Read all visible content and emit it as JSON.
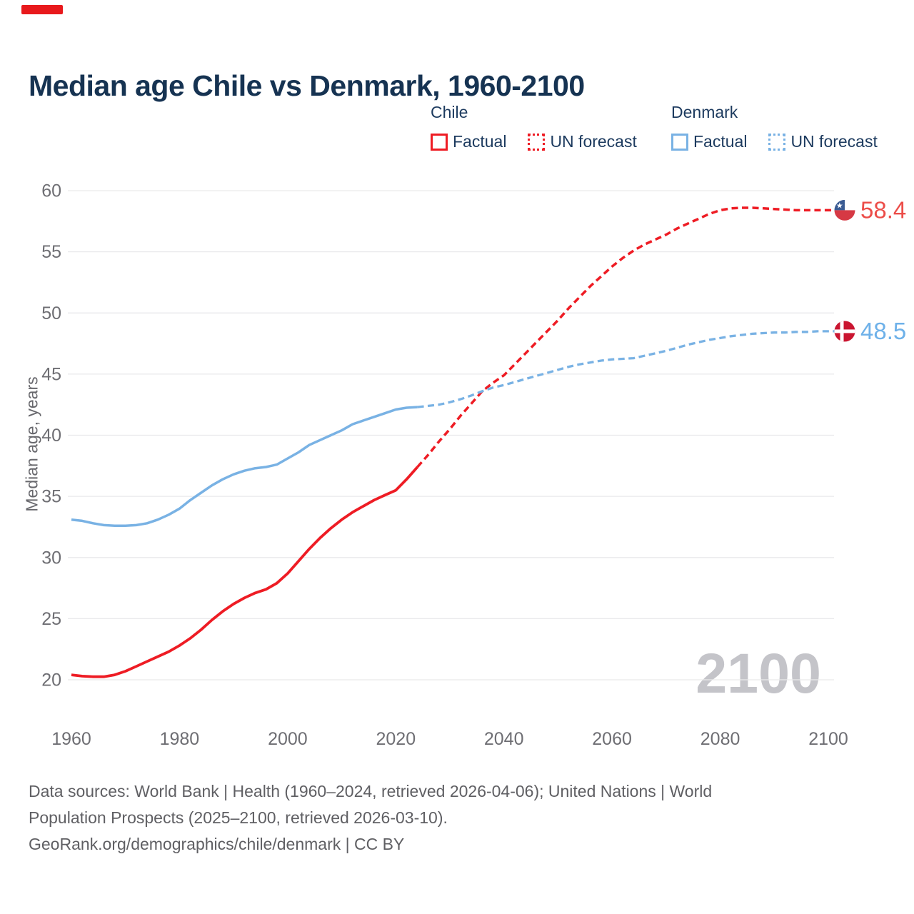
{
  "corner_marker": {
    "color": "#e8191c"
  },
  "title": "Median age Chile vs Denmark, 1960-2100",
  "legend": {
    "groups": [
      {
        "label": "Chile",
        "color": "#ee1c24",
        "items": [
          {
            "label": "Factual",
            "style": "solid"
          },
          {
            "label": "UN forecast",
            "style": "dotted"
          }
        ]
      },
      {
        "label": "Denmark",
        "color": "#79b2e4",
        "items": [
          {
            "label": "Factual",
            "style": "solid"
          },
          {
            "label": "UN forecast",
            "style": "dotted"
          }
        ]
      }
    ]
  },
  "watermark": "2100",
  "sources": {
    "line1": "Data sources: World Bank | Health (1960–2024, retrieved 2026-04-06); United Nations | World",
    "line2": "Population Prospects (2025–2100, retrieved 2026-03-10).",
    "line3": "GeoRank.org/demographics/chile/denmark | CC BY"
  },
  "chart_data": {
    "type": "line",
    "title": "Median age Chile vs Denmark, 1960-2100",
    "xlabel": "",
    "ylabel": "Median age, years",
    "xlim": [
      1960,
      2100
    ],
    "ylim": [
      20,
      60
    ],
    "grid": true,
    "grid_color": "#e9e9eb",
    "tick_color": "#6e6e73",
    "y_ticks": [
      20,
      25,
      30,
      35,
      40,
      45,
      50,
      55,
      60
    ],
    "x_ticks": [
      1960,
      1980,
      2000,
      2020,
      2040,
      2060,
      2080,
      2100
    ],
    "legend_position": "top",
    "series": [
      {
        "id": "chile-factual",
        "name": "Chile Factual",
        "color": "#ee1c24",
        "style": "solid",
        "width": 3.8,
        "points": [
          [
            1960,
            20.4
          ],
          [
            1962,
            20.3
          ],
          [
            1964,
            20.25
          ],
          [
            1966,
            20.25
          ],
          [
            1968,
            20.4
          ],
          [
            1970,
            20.7
          ],
          [
            1972,
            21.1
          ],
          [
            1974,
            21.5
          ],
          [
            1976,
            21.9
          ],
          [
            1978,
            22.3
          ],
          [
            1980,
            22.8
          ],
          [
            1982,
            23.4
          ],
          [
            1984,
            24.1
          ],
          [
            1986,
            24.9
          ],
          [
            1988,
            25.6
          ],
          [
            1990,
            26.2
          ],
          [
            1992,
            26.7
          ],
          [
            1994,
            27.1
          ],
          [
            1996,
            27.4
          ],
          [
            1998,
            27.9
          ],
          [
            2000,
            28.7
          ],
          [
            2002,
            29.7
          ],
          [
            2004,
            30.7
          ],
          [
            2006,
            31.6
          ],
          [
            2008,
            32.4
          ],
          [
            2010,
            33.1
          ],
          [
            2012,
            33.7
          ],
          [
            2014,
            34.2
          ],
          [
            2016,
            34.7
          ],
          [
            2018,
            35.1
          ],
          [
            2020,
            35.5
          ],
          [
            2022,
            36.4
          ],
          [
            2024,
            37.4
          ]
        ]
      },
      {
        "id": "chile-forecast",
        "name": "Chile UN forecast",
        "color": "#ee1c24",
        "style": "dashed",
        "width": 3.5,
        "extend_to_flag": true,
        "end_label": "58.4",
        "label_color": "#ec4d49",
        "flag": "chile",
        "points": [
          [
            2024,
            37.4
          ],
          [
            2026,
            38.4
          ],
          [
            2028,
            39.5
          ],
          [
            2030,
            40.5
          ],
          [
            2032,
            41.6
          ],
          [
            2034,
            42.6
          ],
          [
            2036,
            43.6
          ],
          [
            2038,
            44.3
          ],
          [
            2040,
            44.9
          ],
          [
            2042,
            45.8
          ],
          [
            2044,
            46.7
          ],
          [
            2046,
            47.6
          ],
          [
            2048,
            48.5
          ],
          [
            2050,
            49.4
          ],
          [
            2052,
            50.4
          ],
          [
            2054,
            51.3
          ],
          [
            2056,
            52.2
          ],
          [
            2058,
            53.0
          ],
          [
            2060,
            53.8
          ],
          [
            2062,
            54.5
          ],
          [
            2064,
            55.1
          ],
          [
            2066,
            55.6
          ],
          [
            2068,
            56.0
          ],
          [
            2070,
            56.4
          ],
          [
            2072,
            56.9
          ],
          [
            2074,
            57.3
          ],
          [
            2076,
            57.7
          ],
          [
            2078,
            58.1
          ],
          [
            2080,
            58.4
          ],
          [
            2082,
            58.55
          ],
          [
            2084,
            58.6
          ],
          [
            2086,
            58.6
          ],
          [
            2088,
            58.55
          ],
          [
            2090,
            58.5
          ],
          [
            2092,
            58.45
          ],
          [
            2094,
            58.4
          ],
          [
            2096,
            58.4
          ],
          [
            2098,
            58.4
          ],
          [
            2100,
            58.4
          ]
        ]
      },
      {
        "id": "denmark-factual",
        "name": "Denmark Factual",
        "color": "#79b2e4",
        "style": "solid",
        "width": 3.5,
        "points": [
          [
            1960,
            33.1
          ],
          [
            1962,
            33.0
          ],
          [
            1964,
            32.8
          ],
          [
            1966,
            32.65
          ],
          [
            1968,
            32.6
          ],
          [
            1970,
            32.6
          ],
          [
            1972,
            32.65
          ],
          [
            1974,
            32.8
          ],
          [
            1976,
            33.1
          ],
          [
            1978,
            33.5
          ],
          [
            1980,
            34.0
          ],
          [
            1982,
            34.7
          ],
          [
            1984,
            35.3
          ],
          [
            1986,
            35.9
          ],
          [
            1988,
            36.4
          ],
          [
            1990,
            36.8
          ],
          [
            1992,
            37.1
          ],
          [
            1994,
            37.3
          ],
          [
            1996,
            37.4
          ],
          [
            1998,
            37.6
          ],
          [
            2000,
            38.1
          ],
          [
            2002,
            38.6
          ],
          [
            2004,
            39.2
          ],
          [
            2006,
            39.6
          ],
          [
            2008,
            40.0
          ],
          [
            2010,
            40.4
          ],
          [
            2012,
            40.9
          ],
          [
            2014,
            41.2
          ],
          [
            2016,
            41.5
          ],
          [
            2018,
            41.8
          ],
          [
            2020,
            42.1
          ],
          [
            2022,
            42.25
          ],
          [
            2024,
            42.3
          ]
        ]
      },
      {
        "id": "denmark-forecast",
        "name": "Denmark UN forecast",
        "color": "#79b2e4",
        "style": "dashed",
        "width": 3.3,
        "extend_to_flag": true,
        "end_label": "48.5",
        "label_color": "#6eb1e9",
        "flag": "denmark",
        "points": [
          [
            2024,
            42.3
          ],
          [
            2026,
            42.4
          ],
          [
            2028,
            42.5
          ],
          [
            2030,
            42.7
          ],
          [
            2032,
            42.95
          ],
          [
            2034,
            43.25
          ],
          [
            2036,
            43.6
          ],
          [
            2038,
            43.9
          ],
          [
            2040,
            44.1
          ],
          [
            2042,
            44.35
          ],
          [
            2044,
            44.6
          ],
          [
            2046,
            44.85
          ],
          [
            2048,
            45.1
          ],
          [
            2050,
            45.35
          ],
          [
            2052,
            45.6
          ],
          [
            2054,
            45.8
          ],
          [
            2056,
            45.95
          ],
          [
            2058,
            46.1
          ],
          [
            2060,
            46.2
          ],
          [
            2062,
            46.25
          ],
          [
            2064,
            46.3
          ],
          [
            2066,
            46.5
          ],
          [
            2068,
            46.7
          ],
          [
            2070,
            46.9
          ],
          [
            2072,
            47.15
          ],
          [
            2074,
            47.4
          ],
          [
            2076,
            47.6
          ],
          [
            2078,
            47.8
          ],
          [
            2080,
            47.95
          ],
          [
            2082,
            48.1
          ],
          [
            2084,
            48.2
          ],
          [
            2086,
            48.3
          ],
          [
            2088,
            48.35
          ],
          [
            2090,
            48.4
          ],
          [
            2092,
            48.4
          ],
          [
            2094,
            48.45
          ],
          [
            2096,
            48.45
          ],
          [
            2098,
            48.5
          ],
          [
            2100,
            48.5
          ]
        ]
      }
    ],
    "end_values": {
      "chile": 58.4,
      "denmark": 48.5
    },
    "flag_colors": {
      "chile_blue": "#3a5b93",
      "chile_red": "#d63944",
      "denmark_red": "#ca1530",
      "cross_white": "#ffffff"
    }
  }
}
